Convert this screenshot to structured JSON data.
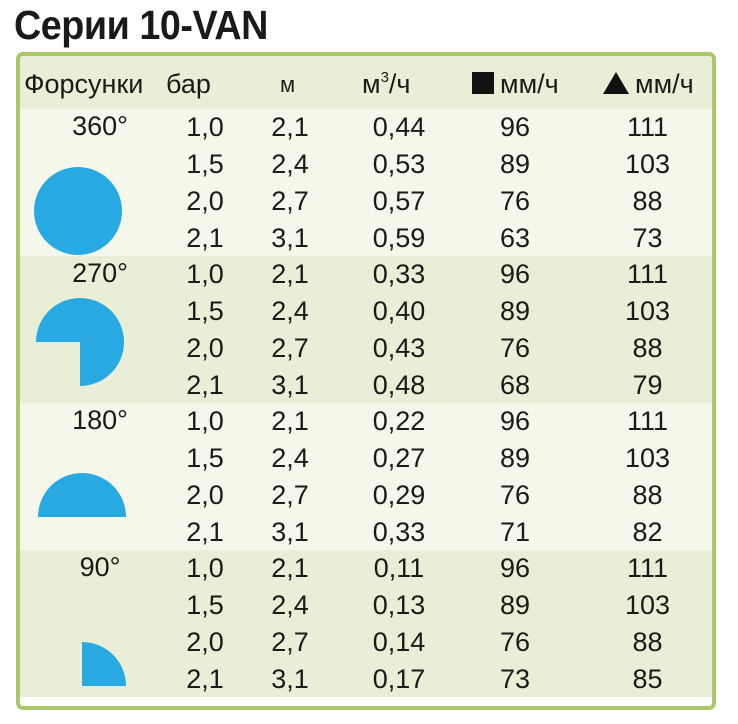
{
  "title": "Серии 10-VAN",
  "header": {
    "nozzles": "Форсунки",
    "bar": "бар",
    "m": "м",
    "flow": "м",
    "flow_sup": "3",
    "flow_unit": "/ч",
    "square_rate": "мм/ч",
    "triangle_rate": "мм/ч"
  },
  "colors": {
    "accent_border": "#a8c86a",
    "band_dark": "#e8efd6",
    "band_light": "#f4f7ea",
    "nozzle_blue": "#29a9e1"
  },
  "groups": [
    {
      "angle": "360°",
      "icon": "full-circle-icon",
      "rows": [
        {
          "bar": "1,0",
          "m": "2,1",
          "flow": "0,44",
          "sq": "96",
          "tri": "111"
        },
        {
          "bar": "1,5",
          "m": "2,4",
          "flow": "0,53",
          "sq": "89",
          "tri": "103"
        },
        {
          "bar": "2,0",
          "m": "2,7",
          "flow": "0,57",
          "sq": "76",
          "tri": "88"
        },
        {
          "bar": "2,1",
          "m": "3,1",
          "flow": "0,59",
          "sq": "63",
          "tri": "73"
        }
      ]
    },
    {
      "angle": "270°",
      "icon": "three-quarter-circle-icon",
      "rows": [
        {
          "bar": "1,0",
          "m": "2,1",
          "flow": "0,33",
          "sq": "96",
          "tri": "111"
        },
        {
          "bar": "1,5",
          "m": "2,4",
          "flow": "0,40",
          "sq": "89",
          "tri": "103"
        },
        {
          "bar": "2,0",
          "m": "2,7",
          "flow": "0,43",
          "sq": "76",
          "tri": "88"
        },
        {
          "bar": "2,1",
          "m": "3,1",
          "flow": "0,48",
          "sq": "68",
          "tri": "79"
        }
      ]
    },
    {
      "angle": "180°",
      "icon": "half-circle-icon",
      "rows": [
        {
          "bar": "1,0",
          "m": "2,1",
          "flow": "0,22",
          "sq": "96",
          "tri": "111"
        },
        {
          "bar": "1,5",
          "m": "2,4",
          "flow": "0,27",
          "sq": "89",
          "tri": "103"
        },
        {
          "bar": "2,0",
          "m": "2,7",
          "flow": "0,29",
          "sq": "76",
          "tri": "88"
        },
        {
          "bar": "2,1",
          "m": "3,1",
          "flow": "0,33",
          "sq": "71",
          "tri": "82"
        }
      ]
    },
    {
      "angle": "90°",
      "icon": "quarter-circle-icon",
      "rows": [
        {
          "bar": "1,0",
          "m": "2,1",
          "flow": "0,11",
          "sq": "96",
          "tri": "111"
        },
        {
          "bar": "1,5",
          "m": "2,4",
          "flow": "0,13",
          "sq": "89",
          "tri": "103"
        },
        {
          "bar": "2,0",
          "m": "2,7",
          "flow": "0,14",
          "sq": "76",
          "tri": "88"
        },
        {
          "bar": "2,1",
          "m": "3,1",
          "flow": "0,17",
          "sq": "73",
          "tri": "85"
        }
      ]
    }
  ]
}
